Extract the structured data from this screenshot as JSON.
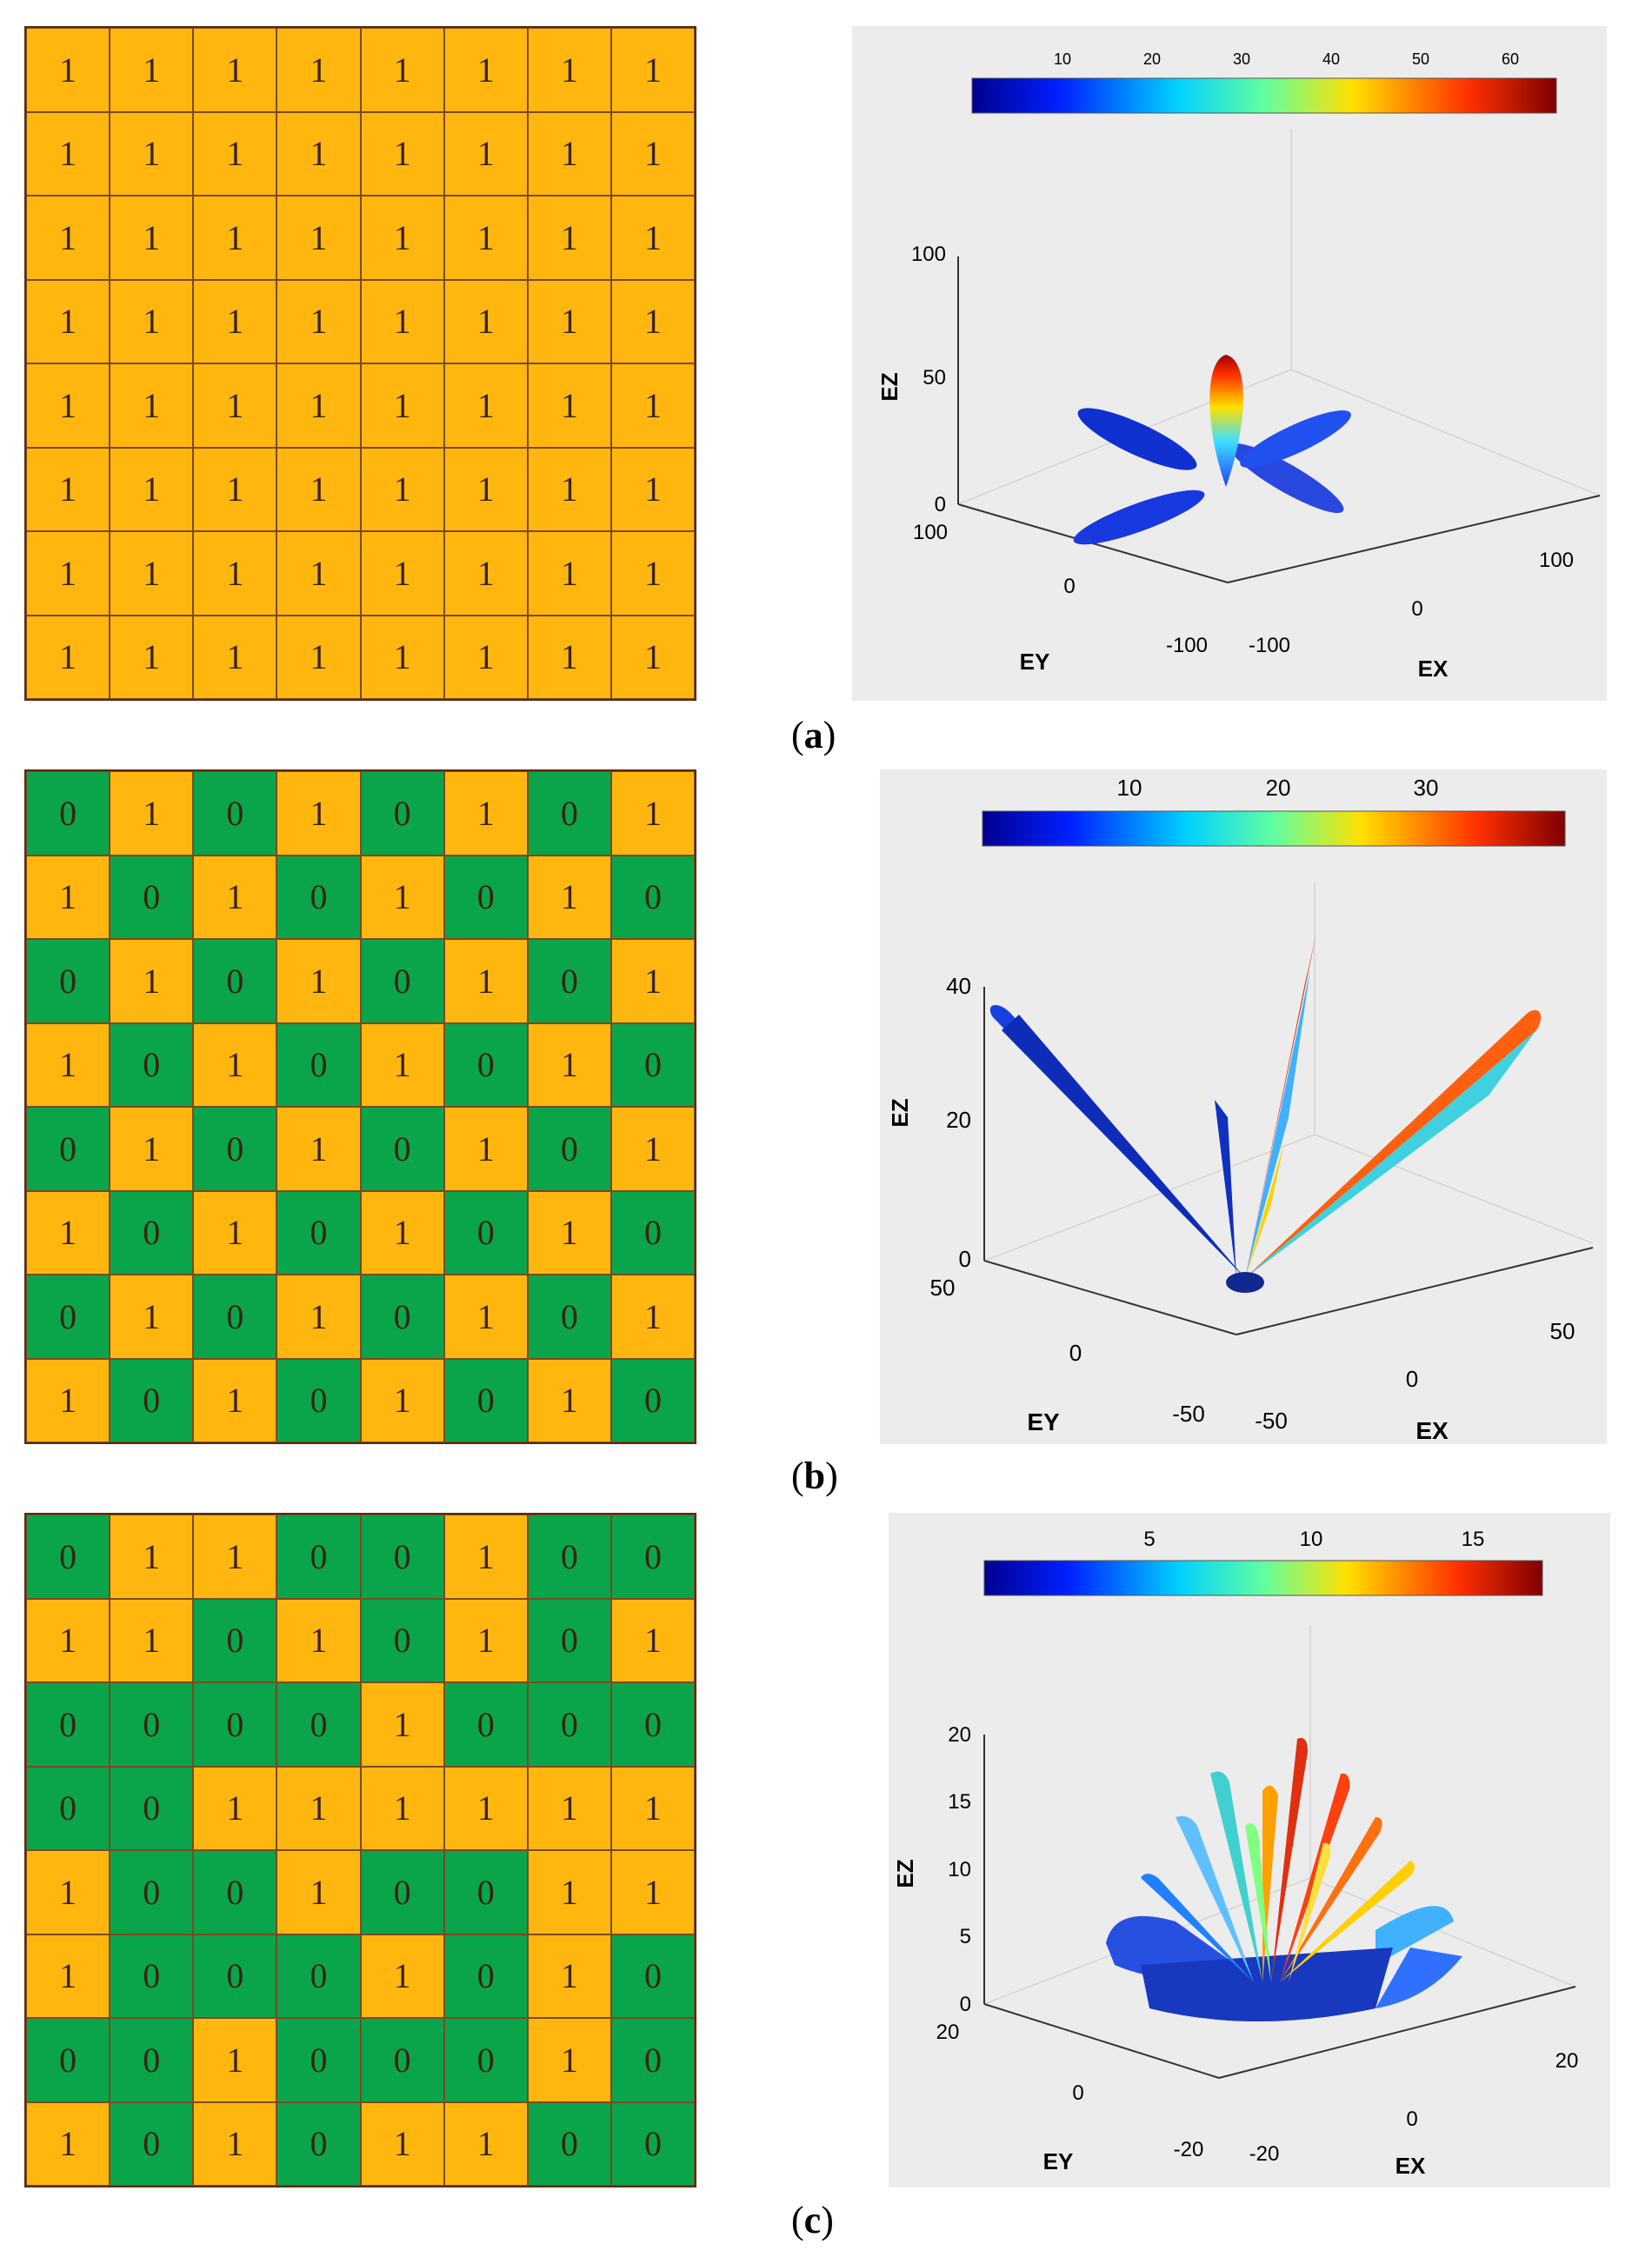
{
  "panels": [
    {
      "caption_open": "(",
      "caption_letter": "a",
      "caption_close": ")",
      "grid": [
        [
          "1",
          "1",
          "1",
          "1",
          "1",
          "1",
          "1",
          "1"
        ],
        [
          "1",
          "1",
          "1",
          "1",
          "1",
          "1",
          "1",
          "1"
        ],
        [
          "1",
          "1",
          "1",
          "1",
          "1",
          "1",
          "1",
          "1"
        ],
        [
          "1",
          "1",
          "1",
          "1",
          "1",
          "1",
          "1",
          "1"
        ],
        [
          "1",
          "1",
          "1",
          "1",
          "1",
          "1",
          "1",
          "1"
        ],
        [
          "1",
          "1",
          "1",
          "1",
          "1",
          "1",
          "1",
          "1"
        ],
        [
          "1",
          "1",
          "1",
          "1",
          "1",
          "1",
          "1",
          "1"
        ],
        [
          "1",
          "1",
          "1",
          "1",
          "1",
          "1",
          "1",
          "1"
        ]
      ],
      "colorbar_ticks": [
        "10",
        "20",
        "30",
        "40",
        "50",
        "60"
      ],
      "axes": {
        "z_label": "EZ",
        "y_label": "EY",
        "x_label": "EX",
        "z_ticks": [
          "0",
          "50",
          "100"
        ],
        "y_ticks": [
          "100",
          "0",
          "-100"
        ],
        "x_ticks": [
          "-100",
          "0",
          "100"
        ]
      }
    },
    {
      "caption_open": "(",
      "caption_letter": "b",
      "caption_close": ")",
      "grid": [
        [
          "0",
          "1",
          "0",
          "1",
          "0",
          "1",
          "0",
          "1"
        ],
        [
          "1",
          "0",
          "1",
          "0",
          "1",
          "0",
          "1",
          "0"
        ],
        [
          "0",
          "1",
          "0",
          "1",
          "0",
          "1",
          "0",
          "1"
        ],
        [
          "1",
          "0",
          "1",
          "0",
          "1",
          "0",
          "1",
          "0"
        ],
        [
          "0",
          "1",
          "0",
          "1",
          "0",
          "1",
          "0",
          "1"
        ],
        [
          "1",
          "0",
          "1",
          "0",
          "1",
          "0",
          "1",
          "0"
        ],
        [
          "0",
          "1",
          "0",
          "1",
          "0",
          "1",
          "0",
          "1"
        ],
        [
          "1",
          "0",
          "1",
          "0",
          "1",
          "0",
          "1",
          "0"
        ]
      ],
      "colorbar_ticks": [
        "10",
        "20",
        "30"
      ],
      "axes": {
        "z_label": "EZ",
        "y_label": "EY",
        "x_label": "EX",
        "z_ticks": [
          "0",
          "20",
          "40"
        ],
        "y_ticks": [
          "50",
          "0",
          "-50"
        ],
        "x_ticks": [
          "-50",
          "0",
          "50"
        ]
      }
    },
    {
      "caption_open": "(",
      "caption_letter": "c",
      "caption_close": ")",
      "grid": [
        [
          "0",
          "1",
          "1",
          "0",
          "0",
          "1",
          "0",
          "0"
        ],
        [
          "1",
          "1",
          "0",
          "1",
          "0",
          "1",
          "0",
          "1"
        ],
        [
          "0",
          "0",
          "0",
          "0",
          "1",
          "0",
          "0",
          "0"
        ],
        [
          "0",
          "0",
          "1",
          "1",
          "1",
          "1",
          "1",
          "1"
        ],
        [
          "1",
          "0",
          "0",
          "1",
          "0",
          "0",
          "1",
          "1"
        ],
        [
          "1",
          "0",
          "0",
          "0",
          "1",
          "0",
          "1",
          "0"
        ],
        [
          "0",
          "0",
          "1",
          "0",
          "0",
          "0",
          "1",
          "0"
        ],
        [
          "1",
          "0",
          "1",
          "0",
          "1",
          "1",
          "0",
          "0"
        ]
      ],
      "colorbar_ticks": [
        "5",
        "10",
        "15"
      ],
      "axes": {
        "z_label": "EZ",
        "y_label": "EY",
        "x_label": "EX",
        "z_ticks": [
          "0",
          "5",
          "10",
          "15",
          "20"
        ],
        "y_ticks": [
          "20",
          "0",
          "-20"
        ],
        "x_ticks": [
          "-20",
          "0",
          "20"
        ]
      }
    }
  ],
  "colors": {
    "one": "#ffb70f",
    "zero": "#0aa54a"
  }
}
